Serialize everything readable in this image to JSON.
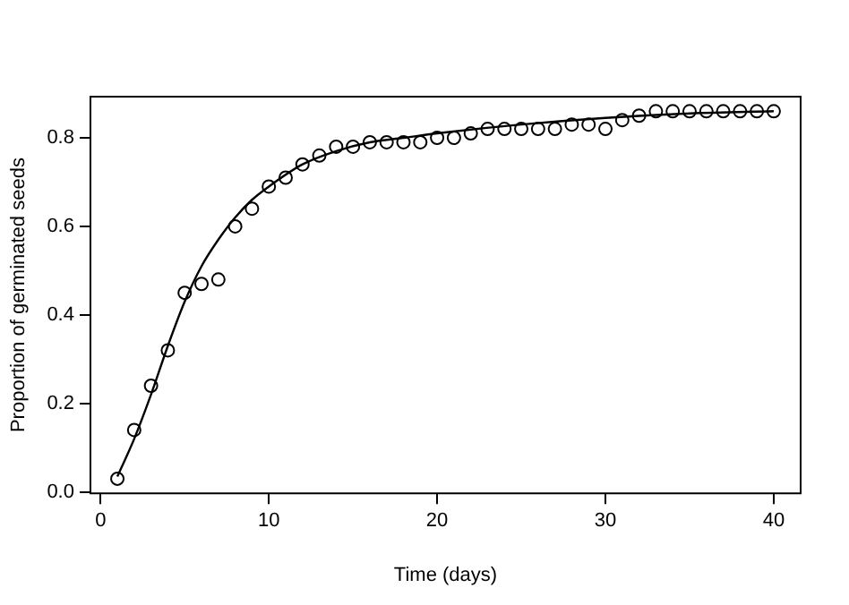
{
  "chart_data": {
    "type": "scatter",
    "xlabel": "Time (days)",
    "ylabel": "Proportion of germinated seeds",
    "marker": "circle",
    "grid": false,
    "legend": false,
    "xlim": [
      -0.6,
      41.6
    ],
    "xticks": [
      0,
      10,
      20,
      30,
      40
    ],
    "ylim": [
      -0.003,
      0.893
    ],
    "yticks": [
      {
        "value": 0,
        "label": "0.0"
      },
      {
        "value": 0.2,
        "label": "0.2"
      },
      {
        "value": 0.4,
        "label": "0.4"
      },
      {
        "value": 0.6,
        "label": "0.6"
      },
      {
        "value": 0.8,
        "label": "0.8"
      }
    ],
    "series": [
      {
        "color": "#000000",
        "x": [
          1,
          2,
          3,
          4,
          5,
          6,
          7,
          8,
          9,
          10,
          11,
          12,
          13,
          14,
          15,
          16,
          17,
          18,
          19,
          20,
          21,
          22,
          23,
          24,
          25,
          26,
          27,
          28,
          29,
          30,
          31,
          32,
          33,
          34,
          35,
          36,
          37,
          38,
          39,
          40
        ],
        "values": [
          0.03,
          0.14,
          0.24,
          0.32,
          0.45,
          0.47,
          0.48,
          0.6,
          0.64,
          0.69,
          0.71,
          0.74,
          0.76,
          0.78,
          0.78,
          0.79,
          0.79,
          0.79,
          0.79,
          0.8,
          0.8,
          0.81,
          0.82,
          0.82,
          0.82,
          0.82,
          0.82,
          0.83,
          0.83,
          0.82,
          0.84,
          0.85,
          0.86,
          0.86,
          0.86,
          0.86,
          0.86,
          0.86,
          0.86,
          0.86
        ]
      },
      {
        "type": "line",
        "color": "#000000",
        "marker": "none",
        "x": [
          1,
          2,
          3,
          4,
          5,
          6,
          7,
          8,
          9,
          10,
          12,
          14,
          16,
          18,
          20,
          25,
          30,
          35,
          40
        ],
        "values": [
          0.035,
          0.12,
          0.22,
          0.33,
          0.43,
          0.51,
          0.57,
          0.62,
          0.66,
          0.69,
          0.74,
          0.77,
          0.79,
          0.8,
          0.81,
          0.83,
          0.845,
          0.855,
          0.86
        ]
      }
    ]
  }
}
